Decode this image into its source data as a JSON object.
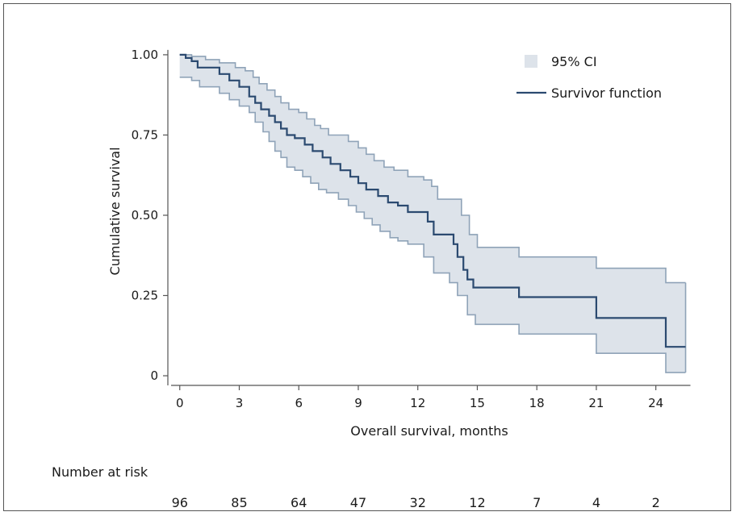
{
  "chart_data": {
    "type": "line",
    "title": "",
    "xlabel": "Overall survival, months",
    "ylabel": "Cumulative survival",
    "xlim": [
      -0.6,
      25.6
    ],
    "ylim": [
      -0.02,
      1.04
    ],
    "x_ticks": [
      0,
      3,
      6,
      9,
      12,
      15,
      18,
      21,
      24
    ],
    "y_ticks": [
      {
        "value": 0,
        "label": "0"
      },
      {
        "value": 0.25,
        "label": "0.25"
      },
      {
        "value": 0.5,
        "label": "0.50"
      },
      {
        "value": 0.75,
        "label": "0.75"
      },
      {
        "value": 1.0,
        "label": "1.00"
      }
    ],
    "grid": false,
    "legend_position": "top-right",
    "legend": [
      {
        "label": "95% CI",
        "kind": "band"
      },
      {
        "label": "Survivor function",
        "kind": "line"
      }
    ],
    "colors": {
      "line": "#2b4a70",
      "ci_fill": "#dde3ea",
      "ci_edge": "#8fa3b8",
      "axis": "#555555"
    },
    "series": [
      {
        "name": "Survivor function",
        "step": true,
        "points": [
          [
            0,
            1.0
          ],
          [
            0.3,
            0.99
          ],
          [
            0.6,
            0.98
          ],
          [
            0.9,
            0.96
          ],
          [
            2.0,
            0.94
          ],
          [
            2.5,
            0.92
          ],
          [
            3.0,
            0.9
          ],
          [
            3.5,
            0.87
          ],
          [
            3.8,
            0.85
          ],
          [
            4.1,
            0.83
          ],
          [
            4.5,
            0.81
          ],
          [
            4.8,
            0.79
          ],
          [
            5.1,
            0.77
          ],
          [
            5.4,
            0.75
          ],
          [
            5.8,
            0.74
          ],
          [
            6.3,
            0.72
          ],
          [
            6.7,
            0.7
          ],
          [
            7.2,
            0.68
          ],
          [
            7.6,
            0.66
          ],
          [
            8.1,
            0.64
          ],
          [
            8.6,
            0.62
          ],
          [
            9.0,
            0.6
          ],
          [
            9.4,
            0.58
          ],
          [
            10.0,
            0.56
          ],
          [
            10.5,
            0.54
          ],
          [
            11.0,
            0.53
          ],
          [
            11.5,
            0.51
          ],
          [
            12.5,
            0.48
          ],
          [
            12.8,
            0.44
          ],
          [
            13.8,
            0.41
          ],
          [
            14.0,
            0.37
          ],
          [
            14.3,
            0.33
          ],
          [
            14.5,
            0.3
          ],
          [
            14.8,
            0.275
          ],
          [
            17.1,
            0.245
          ],
          [
            21.0,
            0.18
          ],
          [
            24.5,
            0.09
          ],
          [
            25.5,
            0.09
          ]
        ]
      },
      {
        "name": "95% CI upper",
        "step": true,
        "points": [
          [
            0,
            1.0
          ],
          [
            0.6,
            0.995
          ],
          [
            1.3,
            0.985
          ],
          [
            2.0,
            0.975
          ],
          [
            2.8,
            0.96
          ],
          [
            3.3,
            0.95
          ],
          [
            3.7,
            0.93
          ],
          [
            4.0,
            0.91
          ],
          [
            4.4,
            0.89
          ],
          [
            4.8,
            0.87
          ],
          [
            5.1,
            0.85
          ],
          [
            5.5,
            0.83
          ],
          [
            6.0,
            0.82
          ],
          [
            6.4,
            0.8
          ],
          [
            6.8,
            0.78
          ],
          [
            7.1,
            0.77
          ],
          [
            7.5,
            0.75
          ],
          [
            8.5,
            0.73
          ],
          [
            9.0,
            0.71
          ],
          [
            9.4,
            0.69
          ],
          [
            9.8,
            0.67
          ],
          [
            10.3,
            0.65
          ],
          [
            10.8,
            0.64
          ],
          [
            11.5,
            0.62
          ],
          [
            12.3,
            0.61
          ],
          [
            12.7,
            0.59
          ],
          [
            13.0,
            0.55
          ],
          [
            14.2,
            0.5
          ],
          [
            14.6,
            0.44
          ],
          [
            15.0,
            0.4
          ],
          [
            17.1,
            0.37
          ],
          [
            21.0,
            0.335
          ],
          [
            24.5,
            0.29
          ],
          [
            25.5,
            0.29
          ]
        ]
      },
      {
        "name": "95% CI lower",
        "step": true,
        "points": [
          [
            0,
            0.93
          ],
          [
            0.6,
            0.92
          ],
          [
            1.0,
            0.9
          ],
          [
            2.0,
            0.88
          ],
          [
            2.5,
            0.86
          ],
          [
            3.0,
            0.84
          ],
          [
            3.5,
            0.82
          ],
          [
            3.8,
            0.79
          ],
          [
            4.2,
            0.76
          ],
          [
            4.5,
            0.73
          ],
          [
            4.8,
            0.7
          ],
          [
            5.1,
            0.68
          ],
          [
            5.4,
            0.65
          ],
          [
            5.8,
            0.64
          ],
          [
            6.2,
            0.62
          ],
          [
            6.6,
            0.6
          ],
          [
            7.0,
            0.58
          ],
          [
            7.4,
            0.57
          ],
          [
            8.0,
            0.55
          ],
          [
            8.5,
            0.53
          ],
          [
            8.9,
            0.51
          ],
          [
            9.3,
            0.49
          ],
          [
            9.7,
            0.47
          ],
          [
            10.1,
            0.45
          ],
          [
            10.6,
            0.43
          ],
          [
            11.0,
            0.42
          ],
          [
            11.5,
            0.41
          ],
          [
            12.3,
            0.37
          ],
          [
            12.8,
            0.32
          ],
          [
            13.6,
            0.29
          ],
          [
            14.0,
            0.25
          ],
          [
            14.5,
            0.19
          ],
          [
            14.9,
            0.16
          ],
          [
            17.1,
            0.13
          ],
          [
            21.0,
            0.07
          ],
          [
            24.5,
            0.01
          ],
          [
            25.5,
            0.01
          ]
        ]
      }
    ],
    "risk_table": {
      "title": "Number at risk",
      "x": [
        0,
        3,
        6,
        9,
        12,
        15,
        18,
        21,
        24
      ],
      "values": [
        "96",
        "85",
        "64",
        "47",
        "32",
        "12",
        "7",
        "4",
        "2"
      ]
    }
  }
}
